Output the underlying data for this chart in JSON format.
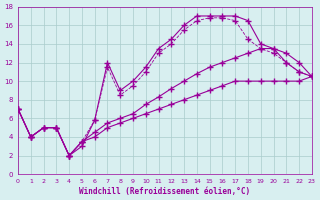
{
  "xlabel": "Windchill (Refroidissement éolien,°C)",
  "background_color": "#d8eff0",
  "grid_color": "#aacccc",
  "line_color": "#990099",
  "xlim": [
    0,
    23
  ],
  "ylim": [
    0,
    18
  ],
  "xticks": [
    0,
    1,
    2,
    3,
    4,
    5,
    6,
    7,
    8,
    9,
    10,
    11,
    12,
    13,
    14,
    15,
    16,
    17,
    18,
    19,
    20,
    21,
    22,
    23
  ],
  "yticks": [
    0,
    2,
    4,
    6,
    8,
    10,
    12,
    14,
    16,
    18
  ],
  "line1_x": [
    0,
    1,
    2,
    3,
    4,
    5,
    6,
    7,
    8,
    9,
    10,
    11,
    12,
    13,
    14,
    15,
    16,
    17,
    18,
    19,
    20,
    21,
    22,
    23
  ],
  "line1_y": [
    7,
    4,
    5,
    5,
    2,
    3.5,
    4,
    5,
    5.5,
    6,
    6.5,
    7,
    7.5,
    8,
    8.5,
    9,
    9.5,
    10,
    10,
    10,
    10,
    10,
    10,
    10.5
  ],
  "line2_x": [
    0,
    1,
    2,
    3,
    4,
    5,
    6,
    7,
    8,
    9,
    10,
    11,
    12,
    13,
    14,
    15,
    16,
    17,
    18,
    19,
    20,
    21,
    22,
    23
  ],
  "line2_y": [
    7,
    4,
    5,
    5,
    2,
    3.5,
    4.5,
    5.5,
    6,
    6.5,
    7.5,
    8.3,
    9.2,
    10,
    10.8,
    11.5,
    12,
    12.5,
    13,
    13.5,
    13.5,
    13,
    12,
    10.5
  ],
  "line3_x": [
    0,
    1,
    2,
    3,
    4,
    5,
    6,
    7,
    8,
    9,
    10,
    11,
    12,
    13,
    14,
    15,
    16,
    17,
    18,
    19,
    20,
    21,
    22,
    23
  ],
  "line3_y": [
    7,
    4,
    5,
    5,
    2,
    3,
    5.8,
    12,
    9,
    10,
    11.5,
    13.5,
    14.5,
    16,
    17,
    17,
    17,
    17,
    16.5,
    14,
    13.5,
    12,
    11,
    10.5
  ],
  "line4_x": [
    0,
    1,
    2,
    3,
    4,
    5,
    6,
    7,
    8,
    9,
    10,
    11,
    12,
    13,
    14,
    15,
    16,
    17,
    18,
    19,
    20,
    21,
    22,
    23
  ],
  "line4_y": [
    7,
    4,
    5,
    5,
    2,
    3.5,
    5.8,
    11.5,
    8.5,
    9.5,
    11,
    13,
    14,
    15.5,
    16.5,
    16.8,
    16.8,
    16.5,
    14.5,
    13.5,
    13,
    12,
    11,
    10.5
  ]
}
